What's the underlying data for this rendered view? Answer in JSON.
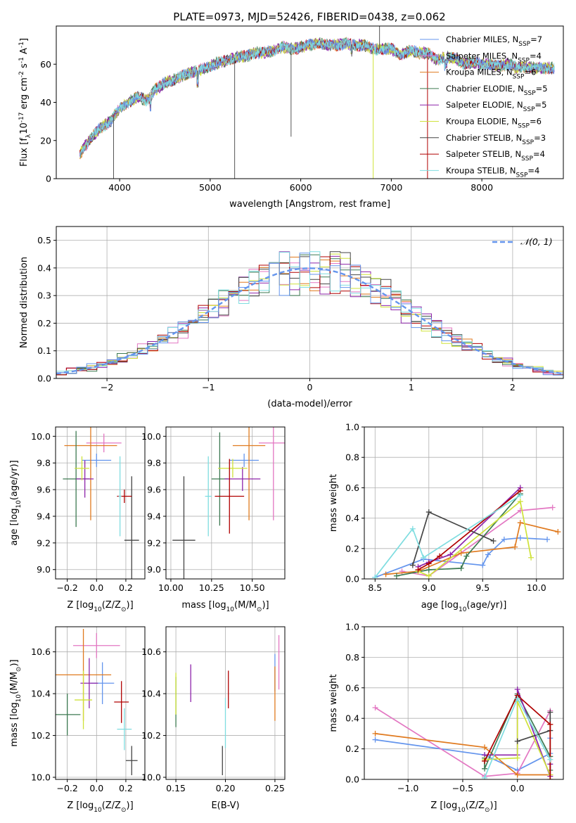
{
  "figure_title": "PLATE=0973, MJD=52426, FIBERID=0438, z=0.062",
  "palette": [
    "#6495ed",
    "#e377c2",
    "#e07a1f",
    "#3d7a52",
    "#8e24aa",
    "#cfe23a",
    "#454545",
    "#b00000",
    "#7fdde0"
  ],
  "chart_data": [
    {
      "id": "spectrum",
      "type": "line",
      "title": "PLATE=0973, MJD=52426, FIBERID=0438, z=0.062",
      "xlabel": "wavelength [Angstrom, rest frame]",
      "ylabel": "Flux [f$_\\lambda$10$^{-17}$ erg cm$^{-2}$ s$^{-1}$ A$^{-1}$]",
      "ylabel_display": "Flux [fλ10⁻¹⁷ erg cm⁻² s⁻¹ A⁻¹]",
      "xlim": [
        3300,
        8900
      ],
      "ylim": [
        0,
        80
      ],
      "xticks": [
        4000,
        5000,
        6000,
        7000,
        8000
      ],
      "yticks": [
        0,
        20,
        40,
        60
      ],
      "legend_position": "top-right",
      "legend": [
        "Chabrier MILES, N$_{SSP}$=7",
        "Salpeter MILES, N$_{SSP}$=4",
        "Kroupa MILES, N$_{SSP}$=6",
        "Chabrier ELODIE, N$_{SSP}$=5",
        "Salpeter ELODIE, N$_{SSP}$=5",
        "Kroupa ELODIE, N$_{SSP}$=6",
        "Chabrier STELIB, N$_{SSP}$=3",
        "Salpeter STELIB, N$_{SSP}$=4",
        "Kroupa STELIB, N$_{SSP}$=4"
      ],
      "legend_display": [
        "Chabrier MILES, NSSP=7",
        "Salpeter MILES, NSSP=4",
        "Kroupa MILES, NSSP=6",
        "Chabrier ELODIE, NSSP=5",
        "Salpeter ELODIE, NSSP=5",
        "Kroupa ELODIE, NSSP=6",
        "Chabrier STELIB, NSSP=3",
        "Salpeter STELIB, NSSP=4",
        "Kroupa STELIB, NSSP=4"
      ],
      "x": [
        3560,
        3600,
        3700,
        3800,
        3900,
        4000,
        4100,
        4200,
        4300,
        4400,
        4500,
        4600,
        4700,
        4800,
        4900,
        5000,
        5100,
        5200,
        5300,
        5400,
        5500,
        5600,
        5700,
        5800,
        5900,
        6000,
        6100,
        6200,
        6300,
        6400,
        6500,
        6600,
        6700,
        6800,
        6900,
        7000,
        7100,
        7200,
        7300,
        7400,
        7500,
        7600,
        7700,
        7800,
        7900,
        8000,
        8100,
        8200,
        8300,
        8400,
        8500,
        8600,
        8700,
        8800
      ],
      "y": [
        13,
        16,
        22,
        27,
        30,
        37,
        40,
        43,
        41,
        47,
        50,
        52,
        54,
        56,
        57,
        59,
        61,
        62,
        64,
        64,
        66,
        66,
        67,
        69,
        68,
        69,
        70,
        71,
        70,
        70,
        71,
        70,
        70,
        68,
        68,
        68,
        65,
        67,
        66,
        66,
        62,
        64,
        63,
        60,
        61,
        60,
        60,
        59,
        60,
        58,
        59,
        58,
        58,
        58
      ],
      "absorption_features": [
        {
          "x": 3933,
          "y": 0
        },
        {
          "x": 4861,
          "y": 52
        },
        {
          "x": 5270,
          "y": 0
        },
        {
          "x": 5893,
          "y": 22
        },
        {
          "x": 6563,
          "y": 64
        },
        {
          "x": 6800,
          "y": 0
        },
        {
          "x": 7400,
          "y": 0
        }
      ],
      "emission_features": [
        {
          "x": 6870,
          "y": 80
        }
      ]
    },
    {
      "id": "residuals",
      "type": "area",
      "xlabel": "(data-model)/error",
      "ylabel": "Normed distribution",
      "xlim": [
        -2.5,
        2.5
      ],
      "ylim": [
        0,
        0.55
      ],
      "xticks": [
        -2,
        -1,
        0,
        1,
        2
      ],
      "yticks": [
        0.0,
        0.1,
        0.2,
        0.3,
        0.4,
        0.5
      ],
      "legend_position": "top-right",
      "legend": [
        "$\\mathcal{N}(0, 1)$"
      ],
      "legend_display": [
        "𝒩(0, 1)"
      ],
      "bin_width": 0.1,
      "bins_start": -2.5
    },
    {
      "id": "age_vs_Z",
      "type": "scatter",
      "xlabel": "Z [log$_{10}$(Z/Z$_\\odot$)]",
      "ylabel": "age  [log$_{10}$(age/yr)]",
      "xlim": [
        -0.28,
        0.33
      ],
      "ylim": [
        8.93,
        10.07
      ],
      "xticks": [
        -0.2,
        0.0,
        0.2
      ],
      "yticks": [
        9.0,
        9.2,
        9.4,
        9.6,
        9.8,
        10.0
      ],
      "points": [
        {
          "x": 0.0,
          "xerr": 0.1,
          "y": 9.82,
          "yerr": 0.05
        },
        {
          "x": 0.05,
          "xerr": 0.12,
          "y": 9.95,
          "yerr": 0.07
        },
        {
          "x": -0.04,
          "xerr": 0.18,
          "y": 9.93,
          "yerr": 0.56
        },
        {
          "x": -0.14,
          "xerr": 0.09,
          "y": 9.68,
          "yerr": 0.36
        },
        {
          "x": -0.08,
          "xerr": 0.06,
          "y": 9.68,
          "yerr": 0.14
        },
        {
          "x": -0.1,
          "xerr": 0.05,
          "y": 9.76,
          "yerr": 0.09
        },
        {
          "x": 0.24,
          "xerr": 0.05,
          "y": 9.22,
          "yerr": 0.48
        },
        {
          "x": 0.19,
          "xerr": 0.05,
          "y": 9.55,
          "yerr": 0.05
        },
        {
          "x": 0.16,
          "xerr": 0.01,
          "y": 9.55,
          "yerr": 0.3
        }
      ]
    },
    {
      "id": "age_vs_mass",
      "type": "scatter",
      "xlabel": "mass [log$_{10}$(M/M$_\\odot$)]",
      "ylabel": "",
      "xlim": [
        9.97,
        10.7
      ],
      "ylim": [
        8.93,
        10.07
      ],
      "xticks": [
        10.0,
        10.25,
        10.5
      ],
      "yticks": [
        9.0,
        9.2,
        9.4,
        9.6,
        9.8,
        10.0
      ],
      "points": [
        {
          "x": 10.45,
          "xerr": 0.09,
          "y": 9.82,
          "yerr": 0.05
        },
        {
          "x": 10.63,
          "xerr": 0.09,
          "y": 9.95,
          "yerr": 0.58
        },
        {
          "x": 10.48,
          "xerr": 0.1,
          "y": 9.93,
          "yerr": 0.56
        },
        {
          "x": 10.3,
          "xerr": 0.05,
          "y": 9.68,
          "yerr": 0.35
        },
        {
          "x": 10.44,
          "xerr": 0.11,
          "y": 9.68,
          "yerr": 0.09
        },
        {
          "x": 10.38,
          "xerr": 0.09,
          "y": 9.76,
          "yerr": 0.07
        },
        {
          "x": 10.08,
          "xerr": 0.07,
          "y": 9.22,
          "yerr": 0.48
        },
        {
          "x": 10.36,
          "xerr": 0.09,
          "y": 9.55,
          "yerr": 0.28
        },
        {
          "x": 10.23,
          "xerr": 0.02,
          "y": 9.55,
          "yerr": 0.3
        }
      ]
    },
    {
      "id": "weight_vs_age",
      "type": "line",
      "xlabel": "age  [log$_{10}$(age/yr)]",
      "ylabel": "mass weight",
      "xlim": [
        8.4,
        10.25
      ],
      "ylim": [
        0,
        1.0
      ],
      "xticks": [
        8.5,
        9.0,
        9.5,
        10.0
      ],
      "yticks": [
        0.0,
        0.2,
        0.4,
        0.6,
        0.8,
        1.0
      ],
      "series": [
        {
          "x": [
            8.5,
            8.95,
            9.5,
            9.55,
            9.7,
            9.85,
            10.1
          ],
          "y": [
            0.01,
            0.13,
            0.09,
            0.16,
            0.26,
            0.27,
            0.26
          ]
        },
        {
          "x": [
            8.75,
            9.0,
            9.85,
            10.15
          ],
          "y": [
            0.05,
            0.02,
            0.45,
            0.47
          ]
        },
        {
          "x": [
            8.6,
            8.9,
            9.3,
            9.8,
            9.85,
            10.2
          ],
          "y": [
            0.03,
            0.05,
            0.17,
            0.21,
            0.37,
            0.31
          ]
        },
        {
          "x": [
            8.7,
            9.0,
            9.3,
            9.35,
            9.85
          ],
          "y": [
            0.02,
            0.06,
            0.07,
            0.15,
            0.56
          ]
        },
        {
          "x": [
            8.9,
            9.0,
            9.2,
            9.85
          ],
          "y": [
            0.08,
            0.11,
            0.16,
            0.6
          ]
        },
        {
          "x": [
            8.9,
            9.0,
            9.85,
            9.95
          ],
          "y": [
            0.05,
            0.02,
            0.51,
            0.14
          ]
        },
        {
          "x": [
            8.85,
            9.0,
            9.6
          ],
          "y": [
            0.09,
            0.44,
            0.25
          ]
        },
        {
          "x": [
            8.9,
            9.0,
            9.1,
            9.85
          ],
          "y": [
            0.06,
            0.1,
            0.15,
            0.58
          ]
        },
        {
          "x": [
            8.5,
            8.85,
            8.95,
            9.85
          ],
          "y": [
            0.01,
            0.33,
            0.14,
            0.55
          ]
        }
      ]
    },
    {
      "id": "mass_vs_Z",
      "type": "scatter",
      "xlabel": "Z [log$_{10}$(Z/Z$_\\odot$)]",
      "ylabel": "mass [log$_{10}$(M/M$_\\odot$)]",
      "xlim": [
        -0.28,
        0.33
      ],
      "ylim": [
        9.99,
        10.72
      ],
      "xticks": [
        -0.2,
        0.0,
        0.2
      ],
      "yticks": [
        10.0,
        10.2,
        10.4,
        10.6
      ],
      "points": [
        {
          "x": 0.04,
          "xerr": 0.08,
          "y": 10.45,
          "yerr": 0.1
        },
        {
          "x": 0.0,
          "xerr": 0.16,
          "y": 10.63,
          "yerr": 0.06
        },
        {
          "x": -0.09,
          "xerr": 0.19,
          "y": 10.49,
          "yerr": 0.22
        },
        {
          "x": -0.2,
          "xerr": 0.09,
          "y": 10.3,
          "yerr": 0.1
        },
        {
          "x": -0.05,
          "xerr": 0.06,
          "y": 10.45,
          "yerr": 0.12
        },
        {
          "x": -0.09,
          "xerr": 0.06,
          "y": 10.37,
          "yerr": 0.14
        },
        {
          "x": 0.24,
          "xerr": 0.04,
          "y": 10.08,
          "yerr": 0.07
        },
        {
          "x": 0.17,
          "xerr": 0.05,
          "y": 10.36,
          "yerr": 0.1
        },
        {
          "x": 0.19,
          "xerr": 0.05,
          "y": 10.23,
          "yerr": 0.1
        }
      ]
    },
    {
      "id": "mass_vs_EBV",
      "type": "scatter",
      "xlabel": "E(B-V)",
      "ylabel": "",
      "xlim": [
        0.14,
        0.26
      ],
      "ylim": [
        9.99,
        10.72
      ],
      "xticks": [
        0.15,
        0.2,
        0.25
      ],
      "yticks": [
        10.0,
        10.2,
        10.4,
        10.6
      ],
      "points": [
        {
          "x": 0.25,
          "y": 10.5,
          "yerr": 0.09
        },
        {
          "x": 0.254,
          "y": 10.55,
          "yerr": 0.13
        },
        {
          "x": 0.25,
          "y": 10.4,
          "yerr": 0.13
        },
        {
          "x": 0.15,
          "y": 10.36,
          "yerr": 0.12
        },
        {
          "x": 0.165,
          "y": 10.45,
          "yerr": 0.09
        },
        {
          "x": 0.15,
          "y": 10.4,
          "yerr": 0.1
        },
        {
          "x": 0.197,
          "y": 10.08,
          "yerr": 0.07
        },
        {
          "x": 0.203,
          "y": 10.42,
          "yerr": 0.09
        },
        {
          "x": 0.2,
          "y": 10.26,
          "yerr": 0.12
        }
      ]
    },
    {
      "id": "weight_vs_Z",
      "type": "line",
      "xlabel": "Z [log$_{10}$(Z/Z$_\\odot$)]",
      "ylabel": "mass weight",
      "xlim": [
        -1.4,
        0.42
      ],
      "ylim": [
        0,
        1.0
      ],
      "xticks": [
        -1.0,
        -0.5,
        0.0
      ],
      "yticks": [
        0.0,
        0.2,
        0.4,
        0.6,
        0.8,
        1.0
      ],
      "series": [
        {
          "x": [
            -1.3,
            -0.3,
            0.0,
            0.3,
            0.3
          ],
          "y": [
            0.26,
            0.16,
            0.06,
            0.17,
            0.27
          ]
        },
        {
          "x": [
            -1.3,
            -0.3,
            0.0,
            0.3
          ],
          "y": [
            0.47,
            0.02,
            0.04,
            0.45
          ]
        },
        {
          "x": [
            -1.3,
            -0.3,
            0.0,
            0.3,
            0.3
          ],
          "y": [
            0.3,
            0.21,
            0.03,
            0.03,
            0.36
          ]
        },
        {
          "x": [
            -0.3,
            -0.3,
            0.0,
            0.3,
            0.3
          ],
          "y": [
            0.14,
            0.07,
            0.56,
            0.15,
            0.06
          ]
        },
        {
          "x": [
            -0.3,
            0.0,
            0.0,
            0.3,
            0.3
          ],
          "y": [
            0.16,
            0.16,
            0.59,
            0.02,
            0.1
          ]
        },
        {
          "x": [
            -0.3,
            0.0,
            0.0,
            0.3
          ],
          "y": [
            0.13,
            0.14,
            0.51,
            0.03
          ]
        },
        {
          "x": [
            0.0,
            0.3,
            0.3
          ],
          "y": [
            0.25,
            0.32,
            0.44
          ]
        },
        {
          "x": [
            -0.3,
            0.0,
            0.3,
            0.3
          ],
          "y": [
            0.12,
            0.55,
            0.36,
            0.0
          ]
        },
        {
          "x": [
            -0.3,
            0.0,
            0.3
          ],
          "y": [
            0.01,
            0.53,
            0.13
          ]
        }
      ]
    }
  ]
}
